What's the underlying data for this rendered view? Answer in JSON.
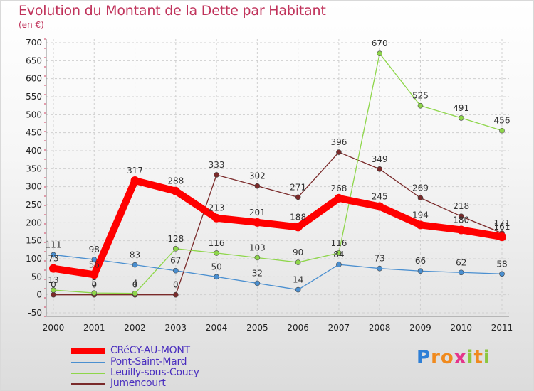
{
  "header": {
    "title": "Evolution du Montant de la Dette par Habitant",
    "unit": "(en €)"
  },
  "chart_data": {
    "type": "line",
    "title": "Evolution du Montant de la Dette par Habitant",
    "subtitle": "(en €)",
    "x": [
      "2000",
      "2001",
      "2002",
      "2003",
      "2004",
      "2005",
      "2006",
      "2007",
      "2008",
      "2009",
      "2010",
      "2011"
    ],
    "ylim": [
      -50,
      700
    ],
    "yticks": [
      -50,
      0,
      50,
      100,
      150,
      200,
      250,
      300,
      350,
      400,
      450,
      500,
      550,
      600,
      650,
      700
    ],
    "grid": true,
    "legend_position": "bottom-left",
    "series": [
      {
        "name": "CRéCY-AU-MONT",
        "color": "#ff0000",
        "values": [
          73,
          56,
          317,
          288,
          213,
          201,
          188,
          268,
          245,
          194,
          180,
          161
        ],
        "labels": [
          "73",
          "56",
          "317",
          "288",
          "213",
          "201",
          "188",
          "268",
          "245",
          "194",
          "180",
          "161"
        ]
      },
      {
        "name": "Pont-Saint-Mard",
        "color": "#4a8fd0",
        "values": [
          111,
          98,
          83,
          67,
          50,
          32,
          14,
          84,
          73,
          66,
          62,
          58
        ],
        "labels": [
          "111",
          "98",
          "83",
          "67",
          "50",
          "32",
          "14",
          "84",
          "73",
          "66",
          "62",
          "58"
        ]
      },
      {
        "name": "Leuilly-sous-Coucy",
        "color": "#8ed64a",
        "values": [
          13,
          5,
          4,
          128,
          116,
          103,
          90,
          116,
          670,
          525,
          491,
          456
        ],
        "labels": [
          "13",
          "5",
          "4",
          "128",
          "116",
          "103",
          "90",
          "116",
          "670",
          "525",
          "491",
          "456"
        ]
      },
      {
        "name": "Jumencourt",
        "color": "#7a2a2a",
        "values": [
          0,
          0,
          0,
          0,
          333,
          302,
          271,
          396,
          349,
          269,
          218,
          171
        ],
        "labels": [
          "0",
          "0",
          "0",
          "0",
          "333",
          "302",
          "271",
          "396",
          "349",
          "269",
          "218",
          "171"
        ]
      }
    ]
  },
  "legend": {
    "items": [
      "CRéCY-AU-MONT",
      "Pont-Saint-Mard",
      "Leuilly-sous-Coucy",
      "Jumencourt"
    ]
  },
  "logo": {
    "letters": [
      "P",
      "r",
      "o",
      "x",
      "i",
      "t",
      "i"
    ],
    "colors": [
      "#2e7fd6",
      "#f08a1e",
      "#f08a1e",
      "#e5358b",
      "#8cc63f",
      "#f08a1e",
      "#8cc63f"
    ]
  }
}
